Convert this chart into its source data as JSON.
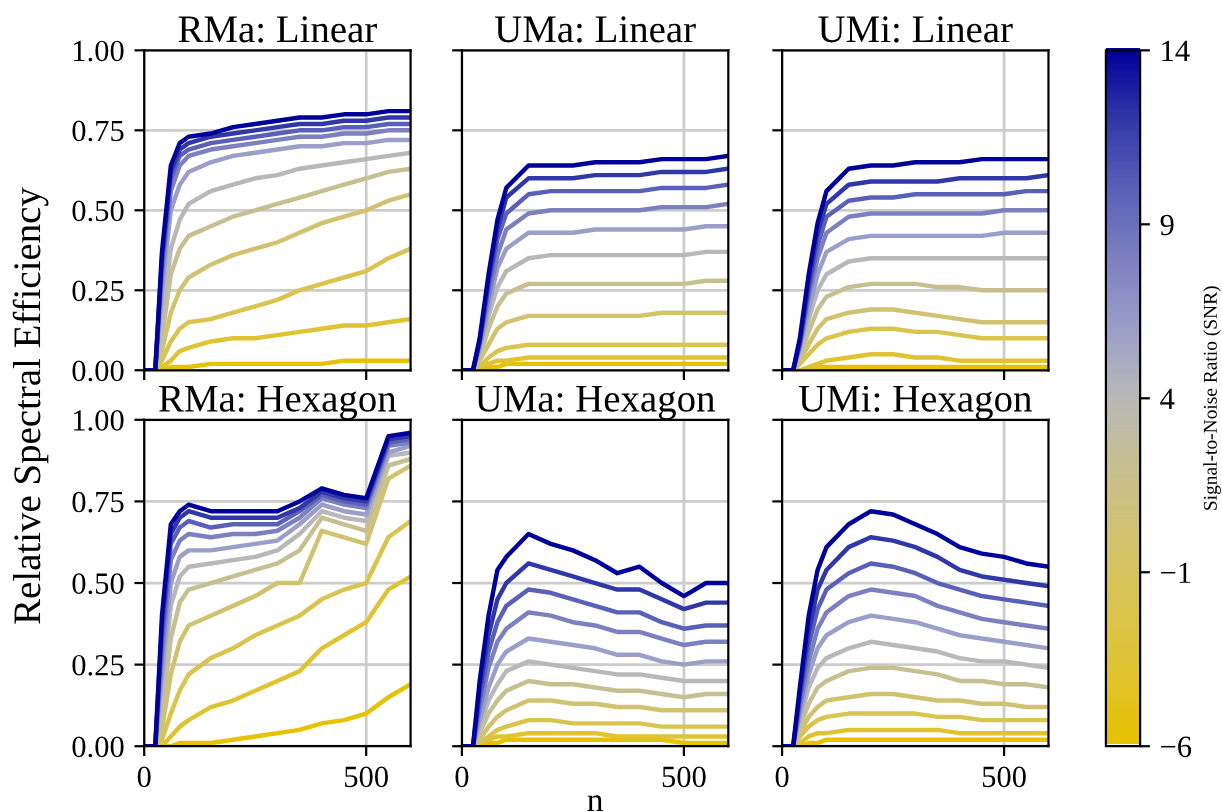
{
  "chart_data": [
    {
      "type": "line",
      "title": "RMa: Linear",
      "ylabel": "Relative Spectral Efficiency",
      "clabel": "Signal-to-Noise Ratio (SNR)",
      "clim": [
        -6,
        14
      ],
      "cticks": [
        -6,
        -1,
        4,
        9,
        14
      ],
      "x": [
        0,
        25,
        40,
        60,
        80,
        100,
        150,
        200,
        250,
        300,
        350,
        400,
        450,
        500,
        550,
        600
      ],
      "xlim": [
        0,
        600
      ],
      "xticks": [
        0,
        500
      ],
      "ylim": [
        0,
        1
      ],
      "yticks": [
        {
          "value": 0,
          "label": "0.00"
        },
        {
          "value": 0.25,
          "label": "0.25"
        },
        {
          "value": 0.5,
          "label": "0.50"
        },
        {
          "value": 0.75,
          "label": "0.75"
        },
        {
          "value": 1,
          "label": "1.00"
        }
      ],
      "grid": true,
      "tick_labels": "y",
      "series": [
        {
          "color": "#e6c200",
          "values": [
            0,
            0,
            0,
            0.01,
            0.01,
            0.01,
            0.02,
            0.02,
            0.02,
            0.02,
            0.02,
            0.02,
            0.03,
            0.03,
            0.03,
            0.03
          ]
        },
        {
          "color": "#e0c330",
          "values": [
            0,
            0,
            0.01,
            0.03,
            0.06,
            0.07,
            0.09,
            0.1,
            0.1,
            0.11,
            0.12,
            0.13,
            0.14,
            0.14,
            0.15,
            0.16
          ]
        },
        {
          "color": "#d9c450",
          "values": [
            0,
            0,
            0.03,
            0.09,
            0.13,
            0.15,
            0.16,
            0.18,
            0.2,
            0.22,
            0.25,
            0.27,
            0.29,
            0.31,
            0.35,
            0.38
          ]
        },
        {
          "color": "#d1c270",
          "values": [
            0,
            0,
            0.06,
            0.18,
            0.25,
            0.29,
            0.33,
            0.36,
            0.38,
            0.4,
            0.43,
            0.46,
            0.48,
            0.5,
            0.53,
            0.55
          ]
        },
        {
          "color": "#c6bf90",
          "values": [
            0,
            0,
            0.1,
            0.3,
            0.38,
            0.42,
            0.45,
            0.48,
            0.5,
            0.52,
            0.54,
            0.56,
            0.58,
            0.6,
            0.62,
            0.63
          ]
        },
        {
          "color": "#b8b8b8",
          "values": [
            0,
            0,
            0.15,
            0.38,
            0.47,
            0.52,
            0.56,
            0.58,
            0.6,
            0.61,
            0.63,
            0.64,
            0.65,
            0.66,
            0.67,
            0.68
          ]
        },
        {
          "color": "#9a9ec8",
          "values": [
            0,
            0,
            0.25,
            0.5,
            0.58,
            0.62,
            0.65,
            0.67,
            0.68,
            0.69,
            0.7,
            0.7,
            0.71,
            0.71,
            0.72,
            0.72
          ]
        },
        {
          "color": "#7c80c0",
          "values": [
            0,
            0,
            0.3,
            0.56,
            0.64,
            0.67,
            0.69,
            0.7,
            0.71,
            0.72,
            0.73,
            0.73,
            0.74,
            0.74,
            0.75,
            0.75
          ]
        },
        {
          "color": "#5a60b8",
          "values": [
            0,
            0,
            0.33,
            0.6,
            0.67,
            0.69,
            0.71,
            0.72,
            0.73,
            0.74,
            0.75,
            0.75,
            0.76,
            0.76,
            0.77,
            0.77
          ]
        },
        {
          "color": "#3038a8",
          "values": [
            0,
            0,
            0.35,
            0.62,
            0.69,
            0.71,
            0.73,
            0.74,
            0.75,
            0.76,
            0.77,
            0.77,
            0.78,
            0.78,
            0.79,
            0.79
          ]
        },
        {
          "color": "#00009a",
          "values": [
            0,
            0,
            0.37,
            0.64,
            0.71,
            0.73,
            0.74,
            0.76,
            0.77,
            0.78,
            0.79,
            0.79,
            0.8,
            0.8,
            0.81,
            0.81
          ]
        }
      ]
    },
    {
      "type": "line",
      "title": "UMa: Linear",
      "x": [
        0,
        25,
        40,
        60,
        80,
        100,
        150,
        200,
        250,
        300,
        350,
        400,
        450,
        500,
        550,
        600
      ],
      "xlim": [
        0,
        600
      ],
      "xticks": [
        0,
        500
      ],
      "ylim": [
        0,
        1
      ],
      "yticks": [
        0,
        0.25,
        0.5,
        0.75,
        1
      ],
      "grid": true,
      "tick_labels": false,
      "series": [
        {
          "color": "#e6c200",
          "values": [
            0,
            0,
            0,
            0.01,
            0.01,
            0.02,
            0.02,
            0.02,
            0.02,
            0.02,
            0.02,
            0.02,
            0.02,
            0.02,
            0.02,
            0.02
          ]
        },
        {
          "color": "#e0c330",
          "values": [
            0,
            0,
            0.01,
            0.02,
            0.03,
            0.03,
            0.04,
            0.04,
            0.04,
            0.04,
            0.04,
            0.04,
            0.04,
            0.04,
            0.04,
            0.04
          ]
        },
        {
          "color": "#d9c450",
          "values": [
            0,
            0,
            0.01,
            0.04,
            0.06,
            0.07,
            0.08,
            0.08,
            0.08,
            0.08,
            0.08,
            0.08,
            0.08,
            0.08,
            0.08,
            0.08
          ]
        },
        {
          "color": "#d1c270",
          "values": [
            0,
            0,
            0.03,
            0.08,
            0.13,
            0.15,
            0.17,
            0.17,
            0.17,
            0.17,
            0.17,
            0.17,
            0.18,
            0.18,
            0.18,
            0.18
          ]
        },
        {
          "color": "#c6bf90",
          "values": [
            0,
            0,
            0.04,
            0.13,
            0.2,
            0.24,
            0.27,
            0.27,
            0.27,
            0.27,
            0.27,
            0.27,
            0.27,
            0.27,
            0.28,
            0.28
          ]
        },
        {
          "color": "#b8b8b8",
          "values": [
            0,
            0,
            0.06,
            0.17,
            0.26,
            0.31,
            0.35,
            0.36,
            0.36,
            0.36,
            0.36,
            0.36,
            0.36,
            0.36,
            0.37,
            0.37
          ]
        },
        {
          "color": "#9a9ec8",
          "values": [
            0,
            0,
            0.07,
            0.2,
            0.32,
            0.38,
            0.43,
            0.43,
            0.43,
            0.44,
            0.44,
            0.44,
            0.44,
            0.44,
            0.45,
            0.45
          ]
        },
        {
          "color": "#7c80c0",
          "values": [
            0,
            0,
            0.08,
            0.23,
            0.36,
            0.44,
            0.49,
            0.5,
            0.5,
            0.5,
            0.5,
            0.5,
            0.51,
            0.51,
            0.51,
            0.52
          ]
        },
        {
          "color": "#5a60b8",
          "values": [
            0,
            0,
            0.09,
            0.26,
            0.41,
            0.49,
            0.55,
            0.56,
            0.56,
            0.56,
            0.56,
            0.56,
            0.57,
            0.57,
            0.57,
            0.58
          ]
        },
        {
          "color": "#3038a8",
          "values": [
            0,
            0,
            0.09,
            0.28,
            0.44,
            0.54,
            0.6,
            0.6,
            0.6,
            0.61,
            0.61,
            0.61,
            0.62,
            0.62,
            0.62,
            0.63
          ]
        },
        {
          "color": "#00009a",
          "values": [
            0,
            0,
            0.1,
            0.3,
            0.47,
            0.57,
            0.64,
            0.64,
            0.64,
            0.65,
            0.65,
            0.65,
            0.66,
            0.66,
            0.66,
            0.67
          ]
        }
      ]
    },
    {
      "type": "line",
      "title": "UMi: Linear",
      "x": [
        0,
        25,
        40,
        60,
        80,
        100,
        150,
        200,
        250,
        300,
        350,
        400,
        450,
        500,
        550,
        600
      ],
      "xlim": [
        0,
        600
      ],
      "xticks": [
        0,
        500
      ],
      "ylim": [
        0,
        1
      ],
      "yticks": [
        0,
        0.25,
        0.5,
        0.75,
        1
      ],
      "grid": true,
      "tick_labels": false,
      "series": [
        {
          "color": "#e6c200",
          "values": [
            0,
            0,
            0,
            0,
            0.01,
            0.01,
            0.01,
            0.01,
            0.01,
            0.01,
            0.01,
            0.01,
            0.01,
            0.01,
            0.01,
            0.01
          ]
        },
        {
          "color": "#e0c330",
          "values": [
            0,
            0,
            0,
            0.01,
            0.02,
            0.03,
            0.04,
            0.05,
            0.05,
            0.04,
            0.04,
            0.03,
            0.03,
            0.03,
            0.03,
            0.03
          ]
        },
        {
          "color": "#d9c450",
          "values": [
            0,
            0,
            0.02,
            0.05,
            0.08,
            0.1,
            0.12,
            0.13,
            0.13,
            0.12,
            0.12,
            0.11,
            0.1,
            0.1,
            0.1,
            0.1
          ]
        },
        {
          "color": "#d1c270",
          "values": [
            0,
            0,
            0.03,
            0.08,
            0.13,
            0.16,
            0.18,
            0.19,
            0.19,
            0.18,
            0.17,
            0.16,
            0.15,
            0.15,
            0.15,
            0.15
          ]
        },
        {
          "color": "#c6bf90",
          "values": [
            0,
            0,
            0.04,
            0.12,
            0.19,
            0.23,
            0.26,
            0.27,
            0.27,
            0.27,
            0.26,
            0.26,
            0.25,
            0.25,
            0.25,
            0.25
          ]
        },
        {
          "color": "#b8b8b8",
          "values": [
            0,
            0,
            0.05,
            0.16,
            0.25,
            0.3,
            0.34,
            0.35,
            0.35,
            0.35,
            0.35,
            0.35,
            0.35,
            0.35,
            0.35,
            0.35
          ]
        },
        {
          "color": "#9a9ec8",
          "values": [
            0,
            0,
            0.07,
            0.19,
            0.3,
            0.37,
            0.41,
            0.42,
            0.42,
            0.42,
            0.42,
            0.42,
            0.42,
            0.43,
            0.43,
            0.43
          ]
        },
        {
          "color": "#7c80c0",
          "values": [
            0,
            0,
            0.08,
            0.23,
            0.35,
            0.43,
            0.48,
            0.49,
            0.49,
            0.49,
            0.49,
            0.49,
            0.49,
            0.5,
            0.5,
            0.5
          ]
        },
        {
          "color": "#5a60b8",
          "values": [
            0,
            0,
            0.08,
            0.25,
            0.39,
            0.48,
            0.53,
            0.54,
            0.54,
            0.55,
            0.55,
            0.55,
            0.55,
            0.55,
            0.56,
            0.56
          ]
        },
        {
          "color": "#3038a8",
          "values": [
            0,
            0,
            0.09,
            0.27,
            0.43,
            0.52,
            0.58,
            0.59,
            0.59,
            0.59,
            0.59,
            0.6,
            0.6,
            0.6,
            0.6,
            0.61
          ]
        },
        {
          "color": "#00009a",
          "values": [
            0,
            0,
            0.1,
            0.3,
            0.46,
            0.56,
            0.63,
            0.64,
            0.64,
            0.65,
            0.65,
            0.65,
            0.66,
            0.66,
            0.66,
            0.66
          ]
        }
      ]
    },
    {
      "type": "line",
      "title": "RMa: Hexagon",
      "x": [
        0,
        25,
        40,
        60,
        80,
        100,
        150,
        200,
        250,
        300,
        350,
        400,
        450,
        500,
        550,
        600
      ],
      "xlim": [
        0,
        600
      ],
      "xticks": [
        0,
        500
      ],
      "ylim": [
        0,
        1
      ],
      "yticks": [
        {
          "value": 0,
          "label": "0.00"
        },
        {
          "value": 0.25,
          "label": "0.25"
        },
        {
          "value": 0.5,
          "label": "0.50"
        },
        {
          "value": 0.75,
          "label": "0.75"
        },
        {
          "value": 1,
          "label": "1.00"
        }
      ],
      "grid": true,
      "series": [
        {
          "color": "#e6c200",
          "values": [
            0,
            0,
            0,
            0,
            0.01,
            0.01,
            0.01,
            0.02,
            0.03,
            0.04,
            0.05,
            0.07,
            0.08,
            0.1,
            0.15,
            0.19
          ]
        },
        {
          "color": "#e0c330",
          "values": [
            0,
            0,
            0,
            0.03,
            0.06,
            0.08,
            0.12,
            0.14,
            0.17,
            0.2,
            0.23,
            0.3,
            0.34,
            0.38,
            0.48,
            0.52
          ]
        },
        {
          "color": "#d9c450",
          "values": [
            0,
            0,
            0.02,
            0.1,
            0.17,
            0.22,
            0.27,
            0.3,
            0.34,
            0.37,
            0.4,
            0.45,
            0.48,
            0.5,
            0.64,
            0.69
          ]
        },
        {
          "color": "#d1c270",
          "values": [
            0,
            0,
            0.05,
            0.22,
            0.32,
            0.37,
            0.4,
            0.43,
            0.46,
            0.5,
            0.5,
            0.66,
            0.64,
            0.62,
            0.82,
            0.86
          ]
        },
        {
          "color": "#c6bf90",
          "values": [
            0,
            0,
            0.1,
            0.33,
            0.44,
            0.48,
            0.5,
            0.52,
            0.54,
            0.56,
            0.6,
            0.7,
            0.68,
            0.66,
            0.86,
            0.88
          ]
        },
        {
          "color": "#b8b8b8",
          "values": [
            0,
            0,
            0.16,
            0.43,
            0.52,
            0.55,
            0.56,
            0.57,
            0.58,
            0.6,
            0.65,
            0.72,
            0.7,
            0.69,
            0.89,
            0.9
          ]
        },
        {
          "color": "#9a9ec8",
          "values": [
            0,
            0,
            0.22,
            0.5,
            0.58,
            0.6,
            0.6,
            0.61,
            0.62,
            0.63,
            0.68,
            0.74,
            0.72,
            0.71,
            0.9,
            0.92
          ]
        },
        {
          "color": "#7c80c0",
          "values": [
            0,
            0,
            0.28,
            0.57,
            0.63,
            0.65,
            0.64,
            0.65,
            0.65,
            0.66,
            0.7,
            0.76,
            0.74,
            0.73,
            0.92,
            0.93
          ]
        },
        {
          "color": "#5a60b8",
          "values": [
            0,
            0,
            0.33,
            0.62,
            0.67,
            0.69,
            0.67,
            0.68,
            0.68,
            0.68,
            0.72,
            0.77,
            0.75,
            0.74,
            0.93,
            0.94
          ]
        },
        {
          "color": "#3038a8",
          "values": [
            0,
            0,
            0.37,
            0.65,
            0.7,
            0.72,
            0.7,
            0.7,
            0.7,
            0.7,
            0.73,
            0.78,
            0.76,
            0.75,
            0.94,
            0.95
          ]
        },
        {
          "color": "#00009a",
          "values": [
            0,
            0,
            0.4,
            0.68,
            0.72,
            0.74,
            0.72,
            0.72,
            0.72,
            0.72,
            0.75,
            0.79,
            0.77,
            0.76,
            0.95,
            0.96
          ]
        }
      ]
    },
    {
      "type": "line",
      "title": "UMa: Hexagon",
      "xlabel": "n",
      "x": [
        0,
        25,
        40,
        60,
        80,
        100,
        150,
        200,
        250,
        300,
        350,
        400,
        450,
        500,
        550,
        600
      ],
      "xlim": [
        0,
        600
      ],
      "xticks": [
        0,
        500
      ],
      "ylim": [
        0,
        1
      ],
      "yticks": [
        0,
        0.25,
        0.5,
        0.75,
        1
      ],
      "grid": true,
      "tick_labels": "x",
      "series": [
        {
          "color": "#e6c200",
          "values": [
            0,
            0,
            0,
            0.01,
            0.01,
            0.02,
            0.02,
            0.02,
            0.02,
            0.02,
            0.02,
            0.02,
            0.02,
            0.01,
            0.01,
            0.01
          ]
        },
        {
          "color": "#e0c330",
          "values": [
            0,
            0,
            0.01,
            0.02,
            0.03,
            0.03,
            0.04,
            0.04,
            0.04,
            0.04,
            0.03,
            0.03,
            0.03,
            0.03,
            0.03,
            0.03
          ]
        },
        {
          "color": "#d9c450",
          "values": [
            0,
            0,
            0.01,
            0.03,
            0.05,
            0.06,
            0.08,
            0.08,
            0.07,
            0.07,
            0.07,
            0.07,
            0.06,
            0.06,
            0.06,
            0.06
          ]
        },
        {
          "color": "#d1c270",
          "values": [
            0,
            0,
            0.02,
            0.06,
            0.09,
            0.11,
            0.14,
            0.14,
            0.13,
            0.13,
            0.12,
            0.12,
            0.11,
            0.11,
            0.11,
            0.11
          ]
        },
        {
          "color": "#c6bf90",
          "values": [
            0,
            0,
            0.04,
            0.1,
            0.14,
            0.17,
            0.2,
            0.19,
            0.19,
            0.18,
            0.17,
            0.17,
            0.16,
            0.15,
            0.16,
            0.16
          ]
        },
        {
          "color": "#b8b8b8",
          "values": [
            0,
            0,
            0.06,
            0.14,
            0.19,
            0.23,
            0.26,
            0.25,
            0.24,
            0.23,
            0.22,
            0.22,
            0.21,
            0.2,
            0.2,
            0.2
          ]
        },
        {
          "color": "#9a9ec8",
          "values": [
            0,
            0,
            0.08,
            0.18,
            0.25,
            0.29,
            0.33,
            0.32,
            0.31,
            0.3,
            0.28,
            0.28,
            0.26,
            0.25,
            0.26,
            0.26
          ]
        },
        {
          "color": "#7c80c0",
          "values": [
            0,
            0,
            0.11,
            0.24,
            0.32,
            0.36,
            0.41,
            0.4,
            0.38,
            0.37,
            0.35,
            0.35,
            0.33,
            0.31,
            0.32,
            0.32
          ]
        },
        {
          "color": "#5a60b8",
          "values": [
            0,
            0,
            0.14,
            0.29,
            0.38,
            0.43,
            0.48,
            0.47,
            0.45,
            0.43,
            0.41,
            0.41,
            0.38,
            0.36,
            0.37,
            0.37
          ]
        },
        {
          "color": "#3038a8",
          "values": [
            0,
            0,
            0.17,
            0.34,
            0.45,
            0.5,
            0.56,
            0.54,
            0.52,
            0.5,
            0.48,
            0.48,
            0.45,
            0.42,
            0.44,
            0.44
          ]
        },
        {
          "color": "#00009a",
          "values": [
            0,
            0,
            0.2,
            0.4,
            0.54,
            0.58,
            0.65,
            0.62,
            0.6,
            0.57,
            0.53,
            0.55,
            0.5,
            0.46,
            0.5,
            0.5
          ]
        }
      ]
    },
    {
      "type": "line",
      "title": "UMi: Hexagon",
      "x": [
        0,
        25,
        40,
        60,
        80,
        100,
        150,
        200,
        250,
        300,
        350,
        400,
        450,
        500,
        550,
        600
      ],
      "xlim": [
        0,
        600
      ],
      "xticks": [
        0,
        500
      ],
      "ylim": [
        0,
        1
      ],
      "yticks": [
        0,
        0.25,
        0.5,
        0.75,
        1
      ],
      "grid": true,
      "tick_labels": "x",
      "series": [
        {
          "color": "#e6c200",
          "values": [
            0,
            0,
            0,
            0.01,
            0.01,
            0.02,
            0.02,
            0.02,
            0.02,
            0.02,
            0.02,
            0.02,
            0.02,
            0.02,
            0.02,
            0.02
          ]
        },
        {
          "color": "#e0c330",
          "values": [
            0,
            0,
            0.01,
            0.03,
            0.04,
            0.04,
            0.05,
            0.05,
            0.05,
            0.05,
            0.05,
            0.04,
            0.04,
            0.04,
            0.04,
            0.04
          ]
        },
        {
          "color": "#d9c450",
          "values": [
            0,
            0,
            0.03,
            0.06,
            0.08,
            0.09,
            0.1,
            0.1,
            0.1,
            0.1,
            0.09,
            0.09,
            0.08,
            0.08,
            0.08,
            0.08
          ]
        },
        {
          "color": "#d1c270",
          "values": [
            0,
            0,
            0.04,
            0.09,
            0.12,
            0.14,
            0.15,
            0.16,
            0.16,
            0.15,
            0.14,
            0.14,
            0.13,
            0.13,
            0.12,
            0.12
          ]
        },
        {
          "color": "#c6bf90",
          "values": [
            0,
            0,
            0.06,
            0.13,
            0.18,
            0.2,
            0.23,
            0.24,
            0.24,
            0.23,
            0.22,
            0.2,
            0.2,
            0.19,
            0.19,
            0.18
          ]
        },
        {
          "color": "#b8b8b8",
          "values": [
            0,
            0,
            0.08,
            0.18,
            0.24,
            0.27,
            0.3,
            0.32,
            0.31,
            0.3,
            0.29,
            0.27,
            0.26,
            0.26,
            0.25,
            0.24
          ]
        },
        {
          "color": "#9a9ec8",
          "values": [
            0,
            0,
            0.1,
            0.22,
            0.3,
            0.34,
            0.38,
            0.4,
            0.39,
            0.38,
            0.36,
            0.34,
            0.33,
            0.32,
            0.31,
            0.3
          ]
        },
        {
          "color": "#7c80c0",
          "values": [
            0,
            0,
            0.12,
            0.26,
            0.36,
            0.41,
            0.46,
            0.48,
            0.47,
            0.46,
            0.43,
            0.41,
            0.39,
            0.38,
            0.37,
            0.36
          ]
        },
        {
          "color": "#5a60b8",
          "values": [
            0,
            0,
            0.14,
            0.31,
            0.42,
            0.48,
            0.53,
            0.56,
            0.55,
            0.53,
            0.5,
            0.48,
            0.46,
            0.45,
            0.44,
            0.43
          ]
        },
        {
          "color": "#3038a8",
          "values": [
            0,
            0,
            0.16,
            0.35,
            0.48,
            0.54,
            0.61,
            0.64,
            0.63,
            0.61,
            0.58,
            0.54,
            0.52,
            0.51,
            0.5,
            0.49
          ]
        },
        {
          "color": "#00009a",
          "values": [
            0,
            0,
            0.18,
            0.4,
            0.54,
            0.61,
            0.68,
            0.72,
            0.71,
            0.68,
            0.65,
            0.61,
            0.59,
            0.58,
            0.56,
            0.55
          ]
        }
      ]
    }
  ]
}
